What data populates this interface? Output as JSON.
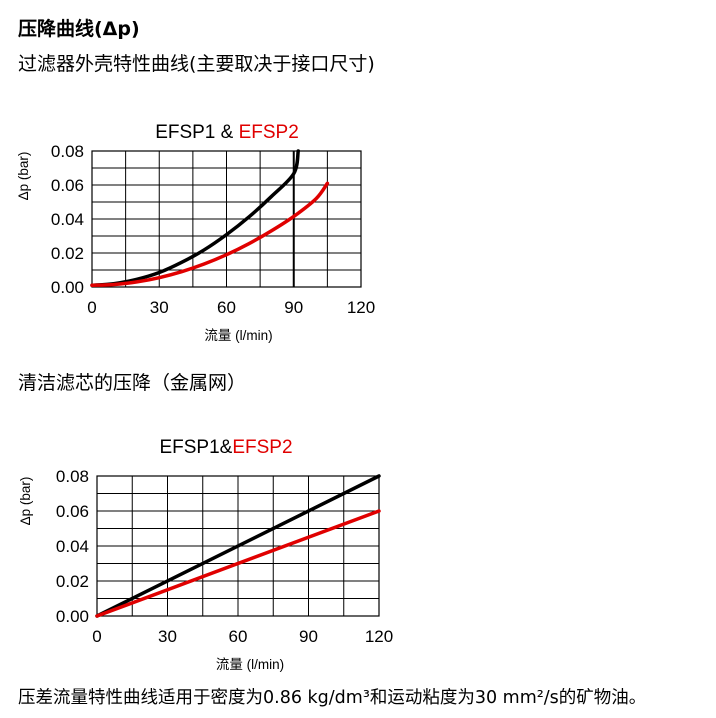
{
  "heading": "压降曲线(Δp)",
  "subheading": "过滤器外壳特性曲线(主要取决于接口尺寸)",
  "section2_heading": "清洁滤芯的压降（金属网）",
  "footer": "压差流量特性曲线适用于密度为0.86 kg/dm³和运动粘度为30 mm²/s的矿物油。",
  "colors": {
    "series1": "#000000",
    "series2": "#e00000",
    "grid": "#000000"
  },
  "chart_data": [
    {
      "type": "line",
      "title_parts": [
        {
          "text": "EFSP1 & ",
          "color": "#000000"
        },
        {
          "text": "EFSP2",
          "color": "#e00000"
        }
      ],
      "xlabel": "流量 (l/min)",
      "ylabel": "Δp (bar)",
      "xlim": [
        0,
        120
      ],
      "ylim": [
        0,
        0.08
      ],
      "xticks": [
        0,
        30,
        60,
        90,
        120
      ],
      "yticks": [
        0,
        0.02,
        0.04,
        0.06,
        0.08
      ],
      "xtick_labels": [
        "0",
        "30",
        "60",
        "90",
        "120"
      ],
      "ytick_labels": [
        "0.00",
        "0.02",
        "0.04",
        "0.06",
        "0.08"
      ],
      "grid": true,
      "x_grid_step": 15,
      "y_grid_step": 0.01,
      "highlight_x": 90,
      "series": [
        {
          "color": "#000000",
          "x": [
            0,
            10,
            20,
            30,
            40,
            50,
            60,
            70,
            80,
            90,
            92
          ],
          "y": [
            0.001,
            0.002,
            0.0045,
            0.0085,
            0.0145,
            0.0218,
            0.0308,
            0.0412,
            0.0532,
            0.0667,
            0.08
          ]
        },
        {
          "color": "#e00000",
          "x": [
            0,
            10,
            20,
            30,
            40,
            50,
            60,
            70,
            80,
            90,
            100,
            105
          ],
          "y": [
            0.001,
            0.0015,
            0.003,
            0.0055,
            0.009,
            0.0135,
            0.019,
            0.0255,
            0.033,
            0.0415,
            0.052,
            0.061
          ]
        }
      ]
    },
    {
      "type": "line",
      "title_parts": [
        {
          "text": "EFSP1&",
          "color": "#000000"
        },
        {
          "text": "EFSP2",
          "color": "#e00000"
        }
      ],
      "xlabel": "流量 (l/min)",
      "ylabel": "Δp (bar)",
      "xlim": [
        0,
        120
      ],
      "ylim": [
        0,
        0.08
      ],
      "xticks": [
        0,
        30,
        60,
        90,
        120
      ],
      "yticks": [
        0,
        0.02,
        0.04,
        0.06,
        0.08
      ],
      "xtick_labels": [
        "0",
        "30",
        "60",
        "90",
        "120"
      ],
      "ytick_labels": [
        "0.00",
        "0.02",
        "0.04",
        "0.06",
        "0.08"
      ],
      "grid": true,
      "x_grid_step": 15,
      "y_grid_step": 0.01,
      "series": [
        {
          "color": "#000000",
          "x": [
            0,
            120
          ],
          "y": [
            0,
            0.08
          ]
        },
        {
          "color": "#e00000",
          "x": [
            0,
            120
          ],
          "y": [
            0,
            0.06
          ]
        }
      ]
    }
  ]
}
